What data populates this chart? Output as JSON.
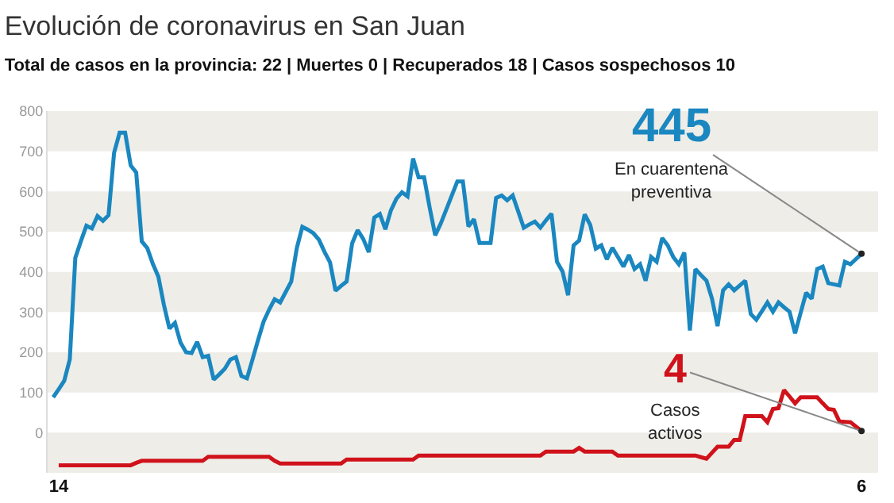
{
  "chart_data": {
    "type": "line",
    "title": "Evolución de coronavirus en San Juan",
    "subtitle": "Total de casos en la provincia: 22 | Muertes 0 | Recuperados 18 | Casos sospechosos 10",
    "categories": [
      null,
      "14",
      null,
      null,
      null,
      null,
      null,
      null,
      null,
      null,
      null,
      null,
      null,
      null,
      null,
      null,
      null,
      null,
      null,
      null,
      null,
      null,
      null,
      null,
      null,
      null,
      null,
      null,
      null,
      null,
      null,
      null,
      null,
      null,
      null,
      null,
      null,
      null,
      null,
      null,
      null,
      null,
      null,
      null,
      null,
      null,
      null,
      null,
      null,
      null,
      null,
      null,
      null,
      null,
      null,
      null,
      null,
      null,
      null,
      null,
      null,
      null,
      null,
      null,
      null,
      null,
      null,
      null,
      null,
      null,
      null,
      null,
      null,
      null,
      null,
      null,
      null,
      null,
      null,
      null,
      null,
      null,
      null,
      null,
      null,
      null,
      null,
      null,
      null,
      null,
      null,
      null,
      null,
      null,
      null,
      null,
      null,
      null,
      null,
      null,
      null,
      null,
      null,
      null,
      null,
      null,
      null,
      null,
      null,
      null,
      null,
      null,
      null,
      null,
      null,
      null,
      null,
      null,
      null,
      null,
      null,
      null,
      null,
      null,
      null,
      null,
      null,
      null,
      null,
      null,
      null,
      null,
      null,
      null,
      null,
      null,
      null,
      null,
      null,
      null,
      null,
      null,
      null,
      null,
      null,
      null,
      "6"
    ],
    "ylim": [
      -100,
      800
    ],
    "yticks": [
      0,
      100,
      200,
      300,
      400,
      500,
      600,
      700,
      800
    ],
    "bands": [
      {
        "axis": "y",
        "from": 700,
        "to": 800,
        "color": "#eeede8"
      },
      {
        "axis": "y",
        "from": 500,
        "to": 600,
        "color": "#eeede8"
      },
      {
        "axis": "y",
        "from": 300,
        "to": 400,
        "color": "#eeede8"
      },
      {
        "axis": "y",
        "from": 100,
        "to": 200,
        "color": "#eeede8"
      },
      {
        "axis": "y",
        "from": -100,
        "to": 0,
        "color": "#eeede8"
      }
    ],
    "legend": false,
    "marker": "none",
    "line_style": "solid",
    "series": [
      {
        "name": "En cuarentena preventiva",
        "color": "#1a87c0",
        "values": [
          88,
          108,
          129,
          182,
          435,
          476,
          515,
          508,
          539,
          527,
          541,
          696,
          746,
          746,
          665,
          647,
          476,
          459,
          420,
          388,
          318,
          259,
          273,
          224,
          200,
          198,
          226,
          188,
          191,
          132,
          145,
          159,
          182,
          188,
          141,
          135,
          182,
          230,
          276,
          306,
          332,
          324,
          350,
          376,
          459,
          512,
          505,
          496,
          480,
          450,
          424,
          353,
          365,
          376,
          471,
          504,
          482,
          449,
          535,
          544,
          506,
          553,
          582,
          598,
          588,
          682,
          635,
          635,
          560,
          491,
          520,
          555,
          590,
          625,
          625,
          513,
          531,
          472,
          472,
          472,
          584,
          590,
          578,
          590,
          550,
          510,
          518,
          525,
          510,
          528,
          545,
          425,
          401,
          342,
          466,
          478,
          543,
          517,
          458,
          466,
          431,
          460,
          437,
          413,
          442,
          407,
          419,
          378,
          437,
          425,
          484,
          466,
          437,
          419,
          448,
          254,
          407,
          392,
          378,
          333,
          265,
          354,
          369,
          354,
          366,
          378,
          295,
          281,
          302,
          324,
          301,
          324,
          312,
          301,
          247,
          298,
          348,
          333,
          407,
          413,
          372,
          369,
          366,
          425,
          419,
          432,
          445
        ],
        "value_labels": [
          null,
          null,
          null,
          null,
          null,
          null,
          null,
          null,
          null,
          null,
          null,
          null,
          null,
          null,
          null,
          null,
          null,
          null,
          null,
          null,
          null,
          null,
          null,
          null,
          null,
          null,
          null,
          null,
          null,
          null,
          null,
          null,
          null,
          null,
          null,
          null,
          null,
          null,
          null,
          null,
          null,
          null,
          null,
          null,
          null,
          null,
          null,
          null,
          null,
          null,
          null,
          null,
          null,
          null,
          null,
          null,
          null,
          null,
          null,
          null,
          null,
          null,
          null,
          null,
          null,
          null,
          null,
          null,
          null,
          null,
          null,
          null,
          null,
          null,
          null,
          null,
          null,
          null,
          null,
          null,
          null,
          null,
          null,
          null,
          null,
          null,
          null,
          null,
          null,
          null,
          null,
          null,
          null,
          null,
          null,
          null,
          null,
          null,
          null,
          null,
          null,
          null,
          null,
          null,
          null,
          null,
          null,
          null,
          null,
          null,
          null,
          null,
          null,
          null,
          null,
          null,
          null,
          null,
          null,
          null,
          null,
          null,
          null,
          null,
          null,
          null,
          null,
          null,
          null,
          null,
          null,
          null,
          null,
          null,
          null,
          null,
          null,
          null,
          null,
          null,
          null,
          null,
          null,
          null,
          null,
          null,
          "445"
        ]
      },
      {
        "name": "Casos activos",
        "color": "#d0121b",
        "values": [
          null,
          -81,
          -81,
          -81,
          -81,
          -81,
          -81,
          -81,
          -81,
          -81,
          -81,
          -81,
          -81,
          -81,
          -81,
          -75,
          -70,
          -70,
          -70,
          -70,
          -70,
          -70,
          -70,
          -70,
          -70,
          -70,
          -70,
          -70,
          -60,
          -60,
          -60,
          -60,
          -60,
          -60,
          -60,
          -60,
          -60,
          -60,
          -60,
          -60,
          -70,
          -77,
          -77,
          -77,
          -77,
          -77,
          -77,
          -77,
          -77,
          -77,
          -77,
          -77,
          -77,
          -67,
          -67,
          -67,
          -67,
          -67,
          -67,
          -67,
          -67,
          -67,
          -67,
          -67,
          -67,
          -67,
          -57,
          -57,
          -57,
          -57,
          -57,
          -57,
          -57,
          -57,
          -57,
          -57,
          -57,
          -57,
          -57,
          -57,
          -57,
          -57,
          -57,
          -57,
          -57,
          -57,
          -57,
          -57,
          -57,
          -47,
          -47,
          -47,
          -47,
          -47,
          -47,
          -38,
          -47,
          -47,
          -47,
          -47,
          -47,
          -47,
          -57,
          -57,
          -57,
          -57,
          -57,
          -57,
          -57,
          -57,
          -57,
          -57,
          -57,
          -57,
          -57,
          -57,
          -57,
          -61,
          -65,
          -50,
          -35,
          -35,
          -35,
          -18,
          -18,
          41,
          41,
          41,
          41,
          26,
          59,
          61,
          106,
          90,
          73,
          88,
          88,
          88,
          88,
          73,
          59,
          57,
          28,
          27,
          26,
          15,
          4
        ],
        "value_labels": [
          null,
          null,
          null,
          null,
          null,
          null,
          null,
          null,
          null,
          null,
          null,
          null,
          null,
          null,
          null,
          null,
          null,
          null,
          null,
          null,
          null,
          null,
          null,
          null,
          null,
          null,
          null,
          null,
          null,
          null,
          null,
          null,
          null,
          null,
          null,
          null,
          null,
          null,
          null,
          null,
          null,
          null,
          null,
          null,
          null,
          null,
          null,
          null,
          null,
          null,
          null,
          null,
          null,
          null,
          null,
          null,
          null,
          null,
          null,
          null,
          null,
          null,
          null,
          null,
          null,
          null,
          null,
          null,
          null,
          null,
          null,
          null,
          null,
          null,
          null,
          null,
          null,
          null,
          null,
          null,
          null,
          null,
          null,
          null,
          null,
          null,
          null,
          null,
          null,
          null,
          null,
          null,
          null,
          null,
          null,
          null,
          null,
          null,
          null,
          null,
          null,
          null,
          null,
          null,
          null,
          null,
          null,
          null,
          null,
          null,
          null,
          null,
          null,
          null,
          null,
          null,
          null,
          null,
          null,
          null,
          null,
          null,
          null,
          null,
          null,
          null,
          null,
          null,
          null,
          null,
          null,
          null,
          null,
          null,
          null,
          null,
          null,
          null,
          null,
          null,
          null,
          null,
          null,
          null,
          null,
          null,
          "4"
        ]
      }
    ]
  }
}
